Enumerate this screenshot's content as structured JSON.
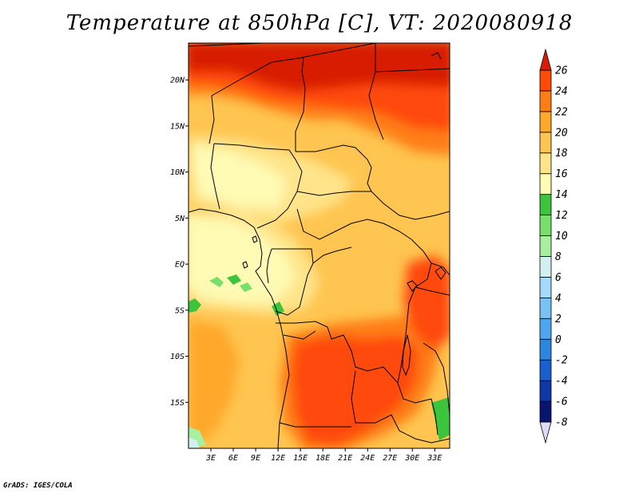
{
  "title": "Temperature at 850hPa [C], VT: 2020080918",
  "credit": "GrADS: IGES/COLA",
  "map": {
    "variable": "Temperature at 850hPa",
    "units": "C",
    "valid_time": "2020080918",
    "lat_range": [
      -20,
      24
    ],
    "lon_range": [
      0,
      35
    ],
    "lat_ticks": [
      {
        "value": 20,
        "label": "20N"
      },
      {
        "value": 15,
        "label": "15N"
      },
      {
        "value": 10,
        "label": "10N"
      },
      {
        "value": 5,
        "label": "5N"
      },
      {
        "value": 0,
        "label": "EQ"
      },
      {
        "value": -5,
        "label": "5S"
      },
      {
        "value": -10,
        "label": "10S"
      },
      {
        "value": -15,
        "label": "15S"
      }
    ],
    "lon_ticks": [
      {
        "value": 3,
        "label": "3E"
      },
      {
        "value": 6,
        "label": "6E"
      },
      {
        "value": 9,
        "label": "9E"
      },
      {
        "value": 12,
        "label": "12E"
      },
      {
        "value": 15,
        "label": "15E"
      },
      {
        "value": 18,
        "label": "18E"
      },
      {
        "value": 21,
        "label": "21E"
      },
      {
        "value": 24,
        "label": "24E"
      },
      {
        "value": 27,
        "label": "27E"
      },
      {
        "value": 30,
        "label": "30E"
      },
      {
        "value": 33,
        "label": "33E"
      }
    ]
  },
  "colorbar": {
    "levels": [
      "-8",
      "-6",
      "-4",
      "-2",
      "0",
      "2",
      "4",
      "6",
      "8",
      "10",
      "12",
      "14",
      "16",
      "18",
      "20",
      "22",
      "24",
      "26"
    ],
    "colors": [
      "#dcdcf5",
      "#08156e",
      "#0e37a8",
      "#1a5fd0",
      "#2b86e0",
      "#4da6ee",
      "#78c3f4",
      "#a4dafa",
      "#d2f0f0",
      "#a6f0a0",
      "#78e06a",
      "#3cc43c",
      "#fffab4",
      "#ffe48a",
      "#ffc550",
      "#ffa82c",
      "#ff7e14",
      "#ff4a08",
      "#d81e04"
    ]
  }
}
